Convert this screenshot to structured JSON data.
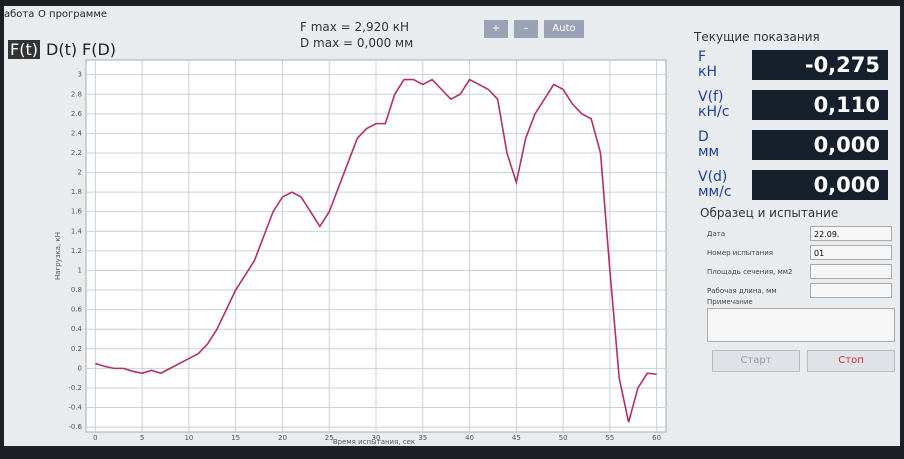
{
  "menu": [
    "абота",
    "О программе"
  ],
  "tabs": [
    "F(t)",
    "D(t)",
    "F(D)"
  ],
  "header": {
    "fmax": "F max = 2,920 кН",
    "dmax": "D max = 0,000 мм"
  },
  "zoom_buttons": [
    "+",
    "–",
    "Auto"
  ],
  "chart_data": {
    "type": "line",
    "x_label": "Время испытания, сек",
    "y_label": "Нагрузка, кН",
    "x": [
      0,
      1,
      2,
      3,
      4,
      5,
      6,
      7,
      8,
      9,
      10,
      11,
      12,
      13,
      14,
      15,
      16,
      17,
      18,
      19,
      20,
      21,
      22,
      23,
      24,
      25,
      26,
      27,
      28,
      29,
      30,
      31,
      32,
      33,
      34,
      35,
      36,
      37,
      38,
      39,
      40,
      41,
      42,
      43,
      44,
      45,
      46,
      47,
      48,
      49,
      50,
      51,
      52,
      53,
      54,
      55,
      56,
      57,
      58,
      59,
      60
    ],
    "series": [
      {
        "color": "#b0306a",
        "values": [
          0.05,
          0.02,
          0.0,
          0.0,
          -0.03,
          -0.05,
          -0.02,
          -0.05,
          0.0,
          0.05,
          0.1,
          0.15,
          0.25,
          0.4,
          0.6,
          0.8,
          0.95,
          1.1,
          1.35,
          1.6,
          1.75,
          1.8,
          1.75,
          1.6,
          1.45,
          1.6,
          1.85,
          2.1,
          2.35,
          2.45,
          2.5,
          2.5,
          2.8,
          2.95,
          2.95,
          2.9,
          2.95,
          2.85,
          2.75,
          2.8,
          2.95,
          2.9,
          2.85,
          2.75,
          2.2,
          1.9,
          2.35,
          2.6,
          2.75,
          2.9,
          2.85,
          2.7,
          2.6,
          2.55,
          2.2,
          1.0,
          -0.1,
          -0.55,
          -0.2,
          -0.05,
          -0.06
        ]
      }
    ],
    "xlim": [
      -1,
      61
    ],
    "xticks": [
      0,
      5,
      10,
      15,
      20,
      25,
      30,
      35,
      40,
      45,
      50,
      55,
      60
    ],
    "ylim": [
      -0.65,
      3.15
    ],
    "yticks": [
      -0.6,
      -0.4,
      -0.2,
      0,
      0.2,
      0.4,
      0.6,
      0.8,
      1,
      1.2,
      1.4,
      1.6,
      1.8,
      2,
      2.2,
      2.4,
      2.6,
      2.8,
      3
    ],
    "grid": true
  },
  "readings": {
    "title": "Текущие показания",
    "items": [
      {
        "name": "F",
        "unit": "кН",
        "value": "-0,275"
      },
      {
        "name": "V(f)",
        "unit": "кН/с",
        "value": "0,110"
      },
      {
        "name": "D",
        "unit": "мм",
        "value": "0,000"
      },
      {
        "name": "V(d)",
        "unit": "мм/с",
        "value": "0,000"
      }
    ]
  },
  "sample": {
    "title": "Образец и испытание",
    "fields": [
      {
        "label": "Дата",
        "value": "22.09."
      },
      {
        "label": "Номер испытания",
        "value": "01"
      },
      {
        "label": "Площадь сечения, мм2"
      },
      {
        "label": "Рабочая длина, мм"
      }
    ],
    "note_label": "Примечание",
    "start": "Старт",
    "stop": "Стоп"
  }
}
